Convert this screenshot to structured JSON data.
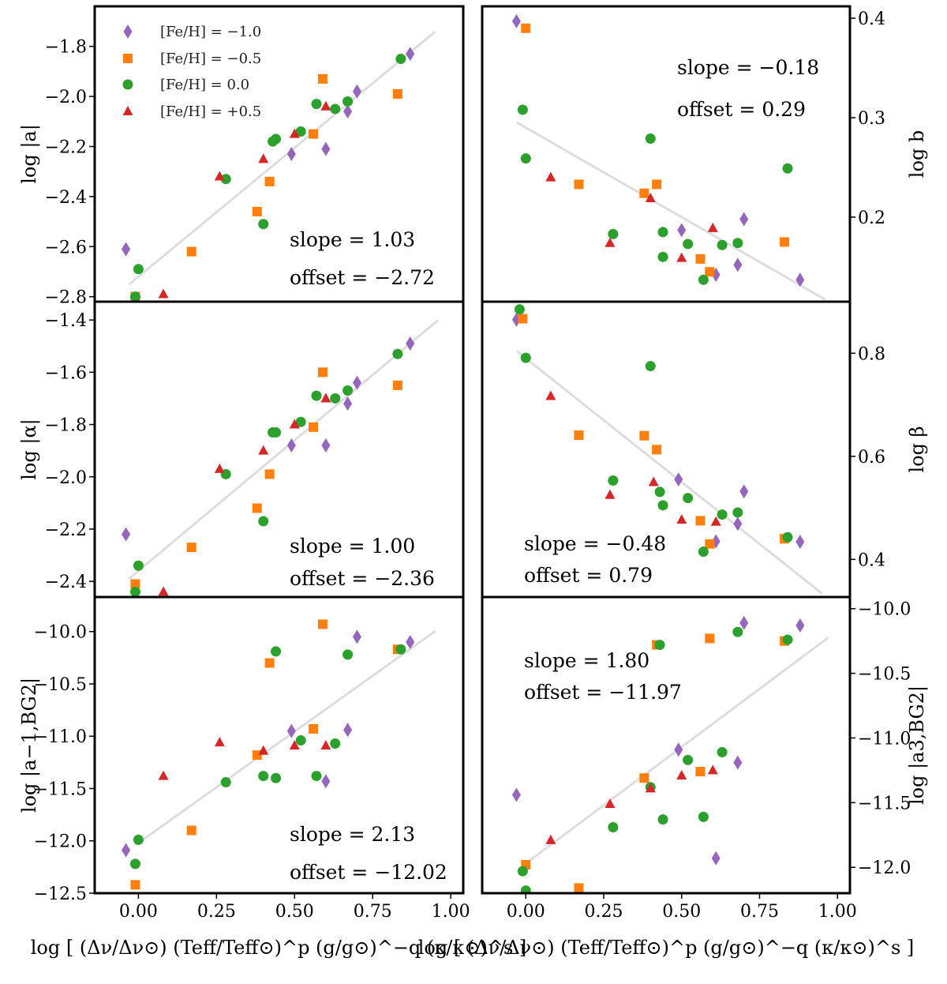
{
  "figure": {
    "xlabel_left": "log [ (Δν/Δν⊙) (Teff/Teff⊙)^p (g/g⊙)^−q (κ/κ⊙)^s ]",
    "xlabel_right": "log [ (Δν/Δν⊙) (Teff/Teff⊙)^p (g/g⊙)^−q (κ/κ⊙)^s ]"
  },
  "colors": {
    "m10": "#9467bd",
    "m05": "#ff7f0e",
    "p00": "#2ca02c",
    "p05": "#d62728",
    "fit": "#dddddd"
  },
  "legend": [
    {
      "key": "m10",
      "marker": "diamond",
      "label": "[Fe/H] = −1.0"
    },
    {
      "key": "m05",
      "marker": "square",
      "label": "[Fe/H] = −0.5"
    },
    {
      "key": "p00",
      "marker": "circle",
      "label": "[Fe/H] = 0.0"
    },
    {
      "key": "p05",
      "marker": "triangle",
      "label": "[Fe/H] = +0.5"
    }
  ],
  "chart_data": [
    {
      "type": "scatter",
      "panel": "a",
      "ylabel": "log |a|",
      "xlim": [
        -0.14,
        1.04
      ],
      "ylim": [
        -2.82,
        -1.64
      ],
      "xticks": [
        0.0,
        0.25,
        0.5,
        0.75,
        1.0
      ],
      "yticks": [
        -2.8,
        -2.6,
        -2.4,
        -2.2,
        -2.0,
        -1.8
      ],
      "fit": {
        "slope": 1.03,
        "offset": -2.72,
        "x": [
          -0.03,
          0.95
        ]
      },
      "annotation": [
        "slope = 1.03",
        "offset = −2.72"
      ],
      "series": [
        {
          "key": "m10",
          "x": [
            -0.04,
            0.49,
            0.6,
            0.67,
            0.7,
            0.87
          ],
          "y": [
            -2.61,
            -2.23,
            -2.21,
            -2.06,
            -1.98,
            -1.83
          ]
        },
        {
          "key": "m05",
          "x": [
            -0.01,
            0.17,
            0.38,
            0.42,
            0.56,
            0.59,
            0.83
          ],
          "y": [
            -2.8,
            -2.62,
            -2.46,
            -2.34,
            -2.15,
            -1.93,
            -1.99
          ]
        },
        {
          "key": "p00",
          "x": [
            -0.01,
            0.0,
            0.28,
            0.4,
            0.43,
            0.44,
            0.52,
            0.57,
            0.63,
            0.67,
            0.84
          ],
          "y": [
            -2.8,
            -2.69,
            -2.33,
            -2.51,
            -2.18,
            -2.17,
            -2.14,
            -2.03,
            -2.05,
            -2.02,
            -1.85
          ]
        },
        {
          "key": "p05",
          "x": [
            0.08,
            0.26,
            0.4,
            0.5,
            0.6
          ],
          "y": [
            -2.79,
            -2.32,
            -2.25,
            -2.15,
            -2.04
          ]
        }
      ]
    },
    {
      "type": "scatter",
      "panel": "b",
      "ylabel": "log b",
      "yaxis_side": "right",
      "xlim": [
        -0.14,
        1.04
      ],
      "ylim": [
        0.115,
        0.412
      ],
      "xticks": [
        0.0,
        0.25,
        0.5,
        0.75,
        1.0
      ],
      "yticks": [
        0.2,
        0.3,
        0.4
      ],
      "fit": {
        "slope": -0.18,
        "offset": 0.29,
        "x": [
          -0.03,
          0.96
        ]
      },
      "annotation": [
        "slope = −0.18",
        "offset = 0.29"
      ],
      "series": [
        {
          "key": "m10",
          "x": [
            -0.03,
            0.5,
            0.61,
            0.68,
            0.7,
            0.88
          ],
          "y": [
            0.397,
            0.187,
            0.142,
            0.152,
            0.198,
            0.137
          ]
        },
        {
          "key": "m05",
          "x": [
            0.0,
            0.17,
            0.38,
            0.42,
            0.56,
            0.59,
            0.83
          ],
          "y": [
            0.39,
            0.233,
            0.224,
            0.233,
            0.158,
            0.145,
            0.175
          ]
        },
        {
          "key": "p00",
          "x": [
            -0.01,
            0.0,
            0.28,
            0.4,
            0.44,
            0.44,
            0.52,
            0.57,
            0.63,
            0.68,
            0.84
          ],
          "y": [
            0.308,
            0.259,
            0.183,
            0.279,
            0.185,
            0.16,
            0.173,
            0.137,
            0.172,
            0.174,
            0.249
          ]
        },
        {
          "key": "p05",
          "x": [
            0.08,
            0.27,
            0.4,
            0.5,
            0.6
          ],
          "y": [
            0.24,
            0.174,
            0.219,
            0.159,
            0.189
          ]
        }
      ]
    },
    {
      "type": "scatter",
      "panel": "alpha",
      "ylabel": "log |α|",
      "xlim": [
        -0.14,
        1.04
      ],
      "ylim": [
        -2.46,
        -1.33
      ],
      "xticks": [
        0.0,
        0.25,
        0.5,
        0.75,
        1.0
      ],
      "yticks": [
        -2.4,
        -2.2,
        -2.0,
        -1.8,
        -1.6,
        -1.4
      ],
      "fit": {
        "slope": 1.0,
        "offset": -2.36,
        "x": [
          -0.03,
          0.96
        ]
      },
      "annotation": [
        "slope = 1.00",
        "offset = −2.36"
      ],
      "series": [
        {
          "key": "m10",
          "x": [
            -0.04,
            0.49,
            0.6,
            0.67,
            0.7,
            0.87
          ],
          "y": [
            -2.22,
            -1.88,
            -1.88,
            -1.72,
            -1.64,
            -1.49
          ]
        },
        {
          "key": "m05",
          "x": [
            -0.01,
            0.17,
            0.38,
            0.42,
            0.56,
            0.59,
            0.83
          ],
          "y": [
            -2.41,
            -2.27,
            -2.12,
            -1.99,
            -1.81,
            -1.6,
            -1.65
          ]
        },
        {
          "key": "p00",
          "x": [
            -0.01,
            0.0,
            0.28,
            0.4,
            0.43,
            0.44,
            0.52,
            0.57,
            0.63,
            0.67,
            0.83
          ],
          "y": [
            -2.44,
            -2.34,
            -1.99,
            -2.17,
            -1.83,
            -1.83,
            -1.79,
            -1.69,
            -1.7,
            -1.67,
            -1.53
          ]
        },
        {
          "key": "p05",
          "x": [
            0.08,
            0.26,
            0.4,
            0.5,
            0.6
          ],
          "y": [
            -2.44,
            -1.97,
            -1.9,
            -1.8,
            -1.7
          ]
        }
      ]
    },
    {
      "type": "scatter",
      "panel": "beta",
      "ylabel": "log β",
      "yaxis_side": "right",
      "xlim": [
        -0.14,
        1.04
      ],
      "ylim": [
        0.327,
        0.9
      ],
      "xticks": [
        0.0,
        0.25,
        0.5,
        0.75,
        1.0
      ],
      "yticks": [
        0.4,
        0.6,
        0.8
      ],
      "fit": {
        "slope": -0.48,
        "offset": 0.79,
        "x": [
          -0.03,
          0.95
        ]
      },
      "annotation": [
        "slope = −0.48",
        "offset = 0.79"
      ],
      "series": [
        {
          "key": "m10",
          "x": [
            -0.03,
            0.49,
            0.61,
            0.68,
            0.7,
            0.88
          ],
          "y": [
            0.865,
            0.555,
            0.435,
            0.469,
            0.532,
            0.434
          ]
        },
        {
          "key": "m05",
          "x": [
            -0.01,
            0.17,
            0.38,
            0.42,
            0.56,
            0.59,
            0.83
          ],
          "y": [
            0.867,
            0.641,
            0.64,
            0.613,
            0.475,
            0.43,
            0.44
          ]
        },
        {
          "key": "p00",
          "x": [
            -0.02,
            0.0,
            0.28,
            0.4,
            0.43,
            0.44,
            0.52,
            0.57,
            0.63,
            0.68,
            0.84
          ],
          "y": [
            0.885,
            0.791,
            0.553,
            0.775,
            0.531,
            0.505,
            0.519,
            0.415,
            0.487,
            0.491,
            0.443
          ]
        },
        {
          "key": "p05",
          "x": [
            0.08,
            0.27,
            0.41,
            0.5,
            0.61
          ],
          "y": [
            0.717,
            0.525,
            0.55,
            0.477,
            0.473
          ]
        }
      ]
    },
    {
      "type": "scatter",
      "panel": "a_minus1_BG2",
      "ylabel": "log |a−1,BG2|",
      "xlim": [
        -0.14,
        1.04
      ],
      "ylim": [
        -12.5,
        -9.67
      ],
      "xticks": [
        0.0,
        0.25,
        0.5,
        0.75,
        1.0
      ],
      "yticks": [
        -12.5,
        -12.0,
        -11.5,
        -11.0,
        -10.5,
        -10.0
      ],
      "fit": {
        "slope": 2.13,
        "offset": -12.02,
        "x": [
          -0.01,
          0.95
        ]
      },
      "annotation": [
        "slope = 2.13",
        "offset = −12.02"
      ],
      "series": [
        {
          "key": "m10",
          "x": [
            -0.04,
            0.49,
            0.6,
            0.67,
            0.7,
            0.87
          ],
          "y": [
            -12.09,
            -10.95,
            -11.43,
            -10.94,
            -10.05,
            -10.1
          ]
        },
        {
          "key": "m05",
          "x": [
            -0.01,
            0.17,
            0.38,
            0.42,
            0.56,
            0.59,
            0.83
          ],
          "y": [
            -12.42,
            -11.9,
            -11.18,
            -10.3,
            -10.93,
            -9.93,
            -10.17
          ]
        },
        {
          "key": "p00",
          "x": [
            -0.01,
            0.0,
            0.28,
            0.4,
            0.44,
            0.44,
            0.52,
            0.57,
            0.63,
            0.67,
            0.84
          ],
          "y": [
            -12.22,
            -11.99,
            -11.44,
            -11.38,
            -10.19,
            -11.4,
            -11.04,
            -11.38,
            -11.07,
            -10.22,
            -10.17
          ]
        },
        {
          "key": "p05",
          "x": [
            0.08,
            0.26,
            0.4,
            0.5,
            0.6
          ],
          "y": [
            -11.38,
            -11.06,
            -11.14,
            -11.09,
            -11.09
          ]
        }
      ]
    },
    {
      "type": "scatter",
      "panel": "a3_BG2",
      "ylabel": "log |a3,BG2|",
      "yaxis_side": "right",
      "xlim": [
        -0.14,
        1.04
      ],
      "ylim": [
        -12.2,
        -9.91
      ],
      "xticks": [
        0.0,
        0.25,
        0.5,
        0.75,
        1.0
      ],
      "yticks": [
        -12.0,
        -11.5,
        -11.0,
        -10.5,
        -10.0
      ],
      "fit": {
        "slope": 1.8,
        "offset": -11.97,
        "x": [
          -0.01,
          0.97
        ]
      },
      "annotation": [
        "slope = 1.80",
        "offset = −11.97"
      ],
      "series": [
        {
          "key": "m10",
          "x": [
            -0.03,
            0.49,
            0.61,
            0.68,
            0.7,
            0.88
          ],
          "y": [
            -11.44,
            -11.09,
            -11.93,
            -11.19,
            -10.11,
            -10.13
          ]
        },
        {
          "key": "m05",
          "x": [
            0.0,
            0.17,
            0.38,
            0.42,
            0.56,
            0.59,
            0.83
          ],
          "y": [
            -11.98,
            -12.16,
            -11.31,
            -10.28,
            -11.26,
            -10.23,
            -10.25
          ]
        },
        {
          "key": "p00",
          "x": [
            -0.01,
            0.0,
            0.28,
            0.4,
            0.43,
            0.44,
            0.52,
            0.57,
            0.63,
            0.68,
            0.84
          ],
          "y": [
            -12.03,
            -12.18,
            -11.69,
            -11.38,
            -10.28,
            -11.63,
            -11.17,
            -11.61,
            -11.11,
            -10.18,
            -10.24
          ]
        },
        {
          "key": "p05",
          "x": [
            0.08,
            0.27,
            0.4,
            0.5,
            0.6
          ],
          "y": [
            -11.79,
            -11.51,
            -11.39,
            -11.29,
            -11.25
          ]
        }
      ]
    }
  ]
}
